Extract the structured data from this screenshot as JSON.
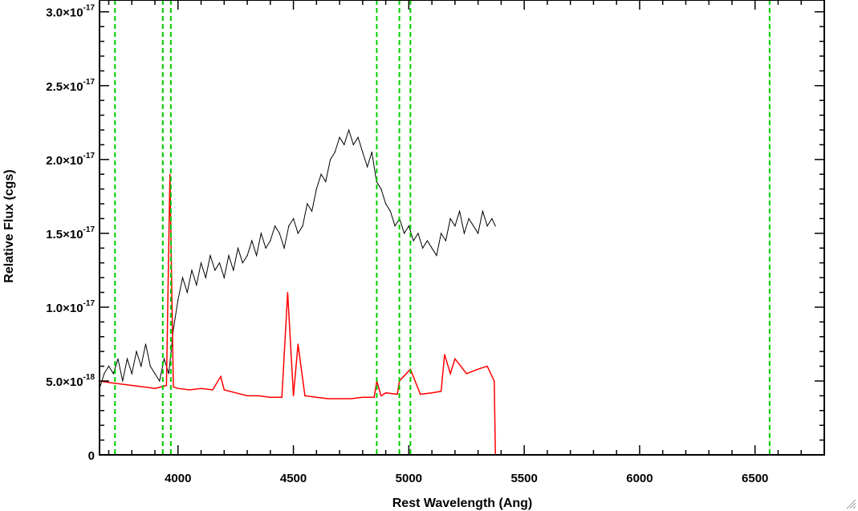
{
  "chart_data": {
    "type": "line",
    "title": "",
    "xlabel": "Rest Wavelength (Ang)",
    "ylabel": "Relative Flux (cgs)",
    "xlim": [
      3660,
      6800
    ],
    "ylim": [
      0,
      3.08e-17
    ],
    "x_ticks": [
      {
        "value": 4000,
        "label": "4000"
      },
      {
        "value": 4500,
        "label": "4500"
      },
      {
        "value": 5000,
        "label": "5000"
      },
      {
        "value": 5500,
        "label": "5500"
      },
      {
        "value": 6000,
        "label": "6000"
      },
      {
        "value": 6500,
        "label": "6500"
      }
    ],
    "y_ticks": [
      {
        "value": 0,
        "mantissa": "0",
        "exponent": ""
      },
      {
        "value": 5e-18,
        "mantissa": "5.0×10",
        "exponent": "-18"
      },
      {
        "value": 1e-17,
        "mantissa": "1.0×10",
        "exponent": "-17"
      },
      {
        "value": 1.5e-17,
        "mantissa": "1.5×10",
        "exponent": "-17"
      },
      {
        "value": 2e-17,
        "mantissa": "2.0×10",
        "exponent": "-17"
      },
      {
        "value": 2.5e-17,
        "mantissa": "2.5×10",
        "exponent": "-17"
      },
      {
        "value": 3e-17,
        "mantissa": "3.0×10",
        "exponent": "-17"
      }
    ],
    "minor_x_step": 100,
    "minor_y_step": 1e-18,
    "reference_lines": {
      "color": "#00cc00",
      "style": "dashed",
      "x": [
        3727,
        3934,
        3969,
        4861,
        4959,
        5007,
        6563
      ]
    },
    "series": [
      {
        "color": "#000000",
        "x": [
          3660,
          3680,
          3700,
          3720,
          3740,
          3760,
          3780,
          3800,
          3820,
          3840,
          3860,
          3880,
          3900,
          3920,
          3940,
          3960,
          3980,
          4000,
          4020,
          4040,
          4060,
          4080,
          4100,
          4120,
          4140,
          4160,
          4180,
          4200,
          4220,
          4240,
          4260,
          4280,
          4300,
          4320,
          4340,
          4360,
          4380,
          4400,
          4420,
          4440,
          4460,
          4480,
          4500,
          4520,
          4540,
          4560,
          4580,
          4600,
          4620,
          4640,
          4660,
          4680,
          4700,
          4720,
          4740,
          4760,
          4780,
          4800,
          4820,
          4840,
          4860,
          4880,
          4900,
          4920,
          4940,
          4960,
          4980,
          5000,
          5020,
          5040,
          5060,
          5080,
          5100,
          5120,
          5140,
          5160,
          5180,
          5200,
          5220,
          5240,
          5260,
          5280,
          5300,
          5320,
          5340,
          5360,
          5375
        ],
        "y": [
          4.5e-18,
          5.5e-18,
          6e-18,
          5.5e-18,
          6.5e-18,
          5e-18,
          6.5e-18,
          5.5e-18,
          7e-18,
          6e-18,
          7.5e-18,
          6e-18,
          5.5e-18,
          5e-18,
          6.5e-18,
          5.5e-18,
          8.5e-18,
          1.05e-17,
          1.2e-17,
          1.1e-17,
          1.25e-17,
          1.15e-17,
          1.3e-17,
          1.2e-17,
          1.35e-17,
          1.25e-17,
          1.3e-17,
          1.2e-17,
          1.35e-17,
          1.25e-17,
          1.4e-17,
          1.3e-17,
          1.35e-17,
          1.45e-17,
          1.35e-17,
          1.5e-17,
          1.4e-17,
          1.45e-17,
          1.55e-17,
          1.5e-17,
          1.4e-17,
          1.55e-17,
          1.6e-17,
          1.5e-17,
          1.55e-17,
          1.7e-17,
          1.65e-17,
          1.8e-17,
          1.9e-17,
          1.85e-17,
          2e-17,
          2.05e-17,
          2.15e-17,
          2.1e-17,
          2.2e-17,
          2.1e-17,
          2.15e-17,
          2.05e-17,
          1.95e-17,
          2.05e-17,
          1.85e-17,
          1.8e-17,
          1.7e-17,
          1.65e-17,
          1.55e-17,
          1.6e-17,
          1.5e-17,
          1.55e-17,
          1.45e-17,
          1.5e-17,
          1.4e-17,
          1.45e-17,
          1.4e-17,
          1.35e-17,
          1.5e-17,
          1.45e-17,
          1.6e-17,
          1.55e-17,
          1.65e-17,
          1.5e-17,
          1.6e-17,
          1.55e-17,
          1.5e-17,
          1.65e-17,
          1.55e-17,
          1.6e-17,
          1.55e-17
        ]
      },
      {
        "color": "#ff0000",
        "x": [
          3660,
          3700,
          3750,
          3800,
          3850,
          3900,
          3950,
          3965,
          3980,
          4000,
          4050,
          4100,
          4150,
          4185,
          4200,
          4250,
          4300,
          4350,
          4400,
          4450,
          4475,
          4500,
          4520,
          4550,
          4600,
          4650,
          4700,
          4750,
          4800,
          4850,
          4861,
          4880,
          4900,
          4950,
          4959,
          5007,
          5050,
          5100,
          5140,
          5155,
          5180,
          5200,
          5250,
          5300,
          5340,
          5370,
          5375,
          5380,
          6800
        ],
        "y": [
          5e-18,
          4.9e-18,
          4.8e-18,
          4.7e-18,
          4.6e-18,
          4.5e-18,
          4.7e-18,
          1.9e-17,
          4.6e-18,
          4.5e-18,
          4.4e-18,
          4.5e-18,
          4.4e-18,
          5.3e-18,
          4.4e-18,
          4.2e-18,
          4e-18,
          4e-18,
          3.9e-18,
          3.9e-18,
          1.1e-17,
          4e-18,
          7.5e-18,
          4e-18,
          3.9e-18,
          3.8e-18,
          3.8e-18,
          3.8e-18,
          3.9e-18,
          3.9e-18,
          5e-18,
          4e-18,
          4.2e-18,
          4.1e-18,
          5e-18,
          5.8e-18,
          4.1e-18,
          4.2e-18,
          4.3e-18,
          6.8e-18,
          5.5e-18,
          6.5e-18,
          5.5e-18,
          5.8e-18,
          6e-18,
          5e-18,
          0,
          0,
          0
        ]
      }
    ]
  }
}
